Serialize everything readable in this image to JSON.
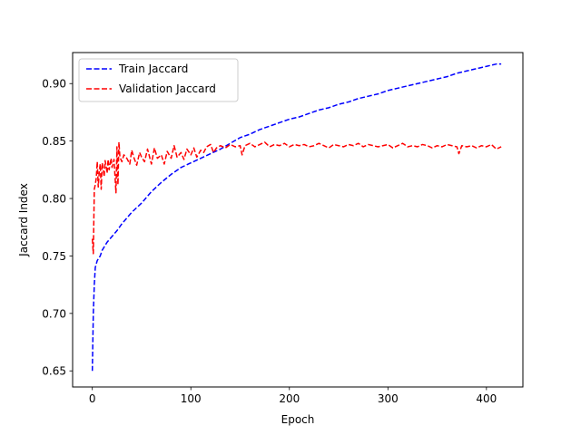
{
  "chart_data": {
    "type": "line",
    "xlabel": "Epoch",
    "ylabel": "Jaccard Index",
    "xlim": [
      -20,
      437
    ],
    "ylim": [
      0.636,
      0.927
    ],
    "xticks": [
      0,
      100,
      200,
      300,
      400
    ],
    "yticks": [
      0.65,
      0.7,
      0.75,
      0.8,
      0.85,
      0.9
    ],
    "ytick_labels": [
      "0.65",
      "0.70",
      "0.75",
      "0.80",
      "0.85",
      "0.90"
    ],
    "grid": false,
    "legend_placement": "top-left",
    "series": [
      {
        "name": "Train Jaccard",
        "color": "#0000ff",
        "style": "dashed",
        "x": [
          0,
          1,
          2,
          3,
          5,
          8,
          10,
          15,
          20,
          25,
          30,
          40,
          50,
          60,
          70,
          80,
          90,
          100,
          110,
          120,
          130,
          140,
          150,
          160,
          170,
          180,
          190,
          200,
          210,
          220,
          230,
          240,
          250,
          260,
          270,
          280,
          290,
          300,
          310,
          320,
          330,
          340,
          350,
          360,
          370,
          380,
          390,
          400,
          410,
          415
        ],
        "y": [
          0.65,
          0.7,
          0.725,
          0.74,
          0.746,
          0.75,
          0.755,
          0.762,
          0.767,
          0.772,
          0.778,
          0.788,
          0.796,
          0.806,
          0.814,
          0.821,
          0.827,
          0.831,
          0.835,
          0.839,
          0.843,
          0.848,
          0.853,
          0.856,
          0.86,
          0.863,
          0.866,
          0.869,
          0.871,
          0.874,
          0.877,
          0.879,
          0.882,
          0.884,
          0.887,
          0.889,
          0.891,
          0.894,
          0.896,
          0.898,
          0.9,
          0.902,
          0.904,
          0.906,
          0.909,
          0.911,
          0.913,
          0.915,
          0.917,
          0.917
        ]
      },
      {
        "name": "Validation Jaccard",
        "color": "#ff0000",
        "style": "dashed",
        "x": [
          0,
          1,
          2,
          3,
          4,
          5,
          6,
          7,
          8,
          9,
          10,
          11,
          12,
          13,
          14,
          15,
          16,
          17,
          18,
          19,
          20,
          22,
          24,
          25,
          26,
          27,
          28,
          30,
          32,
          35,
          38,
          40,
          42,
          45,
          48,
          50,
          53,
          56,
          60,
          63,
          66,
          70,
          73,
          76,
          80,
          83,
          86,
          90,
          93,
          96,
          100,
          103,
          106,
          110,
          113,
          116,
          120,
          123,
          126,
          130,
          135,
          140,
          145,
          150,
          152,
          155,
          160,
          165,
          170,
          175,
          180,
          185,
          190,
          195,
          200,
          205,
          210,
          215,
          220,
          225,
          230,
          235,
          240,
          245,
          250,
          255,
          260,
          265,
          270,
          275,
          280,
          285,
          290,
          295,
          300,
          305,
          310,
          315,
          320,
          325,
          330,
          335,
          340,
          345,
          350,
          355,
          360,
          365,
          370,
          372,
          375,
          380,
          385,
          390,
          395,
          400,
          405,
          410,
          415
        ],
        "y": [
          0.765,
          0.752,
          0.808,
          0.812,
          0.818,
          0.832,
          0.81,
          0.823,
          0.83,
          0.808,
          0.831,
          0.826,
          0.819,
          0.833,
          0.828,
          0.822,
          0.834,
          0.825,
          0.83,
          0.835,
          0.827,
          0.834,
          0.805,
          0.845,
          0.812,
          0.849,
          0.836,
          0.832,
          0.838,
          0.835,
          0.83,
          0.842,
          0.836,
          0.829,
          0.84,
          0.836,
          0.832,
          0.843,
          0.83,
          0.844,
          0.835,
          0.838,
          0.83,
          0.841,
          0.835,
          0.846,
          0.836,
          0.84,
          0.834,
          0.843,
          0.838,
          0.844,
          0.836,
          0.842,
          0.84,
          0.845,
          0.847,
          0.84,
          0.844,
          0.846,
          0.844,
          0.847,
          0.845,
          0.846,
          0.838,
          0.846,
          0.848,
          0.845,
          0.847,
          0.849,
          0.845,
          0.847,
          0.846,
          0.848,
          0.845,
          0.847,
          0.846,
          0.847,
          0.845,
          0.846,
          0.848,
          0.846,
          0.844,
          0.847,
          0.846,
          0.845,
          0.847,
          0.846,
          0.848,
          0.845,
          0.847,
          0.846,
          0.845,
          0.846,
          0.847,
          0.844,
          0.846,
          0.848,
          0.845,
          0.846,
          0.845,
          0.847,
          0.846,
          0.844,
          0.846,
          0.845,
          0.847,
          0.846,
          0.845,
          0.839,
          0.846,
          0.845,
          0.846,
          0.844,
          0.846,
          0.845,
          0.847,
          0.843,
          0.845
        ]
      }
    ]
  }
}
